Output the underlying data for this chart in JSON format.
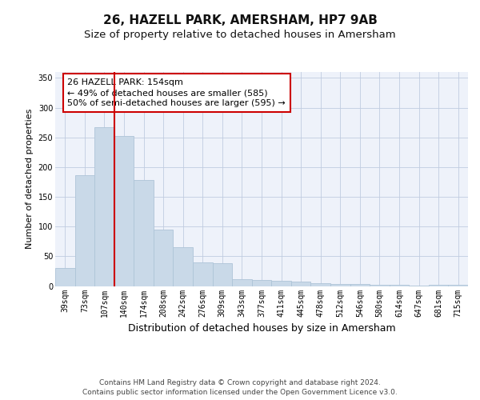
{
  "title": "26, HAZELL PARK, AMERSHAM, HP7 9AB",
  "subtitle": "Size of property relative to detached houses in Amersham",
  "xlabel": "Distribution of detached houses by size in Amersham",
  "ylabel": "Number of detached properties",
  "categories": [
    "39sqm",
    "73sqm",
    "107sqm",
    "140sqm",
    "174sqm",
    "208sqm",
    "242sqm",
    "276sqm",
    "309sqm",
    "343sqm",
    "377sqm",
    "411sqm",
    "445sqm",
    "478sqm",
    "512sqm",
    "546sqm",
    "580sqm",
    "614sqm",
    "647sqm",
    "681sqm",
    "715sqm"
  ],
  "values": [
    30,
    186,
    267,
    252,
    178,
    95,
    65,
    40,
    38,
    12,
    10,
    9,
    7,
    5,
    4,
    3,
    2,
    2,
    1,
    2,
    2
  ],
  "bar_color": "#c9d9e8",
  "bar_edgecolor": "#aec4d8",
  "vline_x_index": 3,
  "vline_color": "#cc0000",
  "annotation_text": "26 HAZELL PARK: 154sqm\n← 49% of detached houses are smaller (585)\n50% of semi-detached houses are larger (595) →",
  "annotation_box_edgecolor": "#cc0000",
  "annotation_box_facecolor": "#ffffff",
  "footer": "Contains HM Land Registry data © Crown copyright and database right 2024.\nContains public sector information licensed under the Open Government Licence v3.0.",
  "ylim": [
    0,
    360
  ],
  "yticks": [
    0,
    50,
    100,
    150,
    200,
    250,
    300,
    350
  ],
  "bg_color": "#eef2fa",
  "title_fontsize": 11,
  "subtitle_fontsize": 9.5,
  "xlabel_fontsize": 9,
  "ylabel_fontsize": 8,
  "tick_fontsize": 7,
  "footer_fontsize": 6.5,
  "annotation_fontsize": 8
}
